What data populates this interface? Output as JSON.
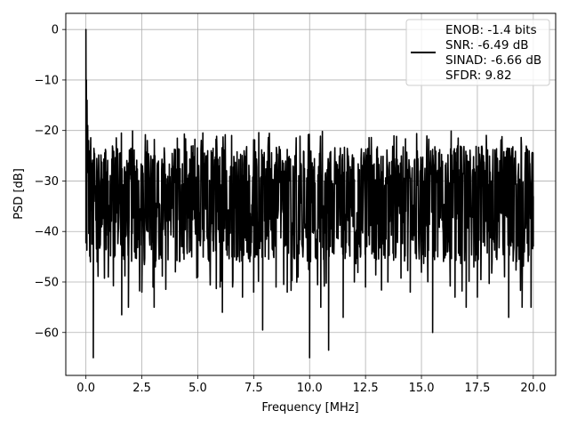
{
  "chart_data": {
    "type": "line",
    "xlabel": "Frequency [MHz]",
    "ylabel": "PSD [dB]",
    "xlim": [
      -0.9,
      21.0
    ],
    "ylim": [
      -68.5,
      3.2
    ],
    "x_ticks": [
      0.0,
      2.5,
      5.0,
      7.5,
      10.0,
      12.5,
      15.0,
      17.5,
      20.0
    ],
    "x_tick_labels": [
      "0.0",
      "2.5",
      "5.0",
      "7.5",
      "10.0",
      "12.5",
      "15.0",
      "17.5",
      "20.0"
    ],
    "y_ticks": [
      0,
      -10,
      -20,
      -30,
      -40,
      -50,
      -60
    ],
    "y_tick_labels": [
      "0",
      "−10",
      "−20",
      "−30",
      "−40",
      "−50",
      "−60"
    ],
    "grid": true,
    "legend_position": "top-right",
    "legend_lines": [
      "ENOB: -1.4 bits",
      "SNR: -6.49 dB",
      "SINAD: -6.66 dB",
      "SFDR: 9.82"
    ],
    "series": [
      {
        "color": "#000000",
        "x_range": [
          0,
          20
        ],
        "description_points": [
          [
            0.0,
            0.0
          ],
          [
            0.02,
            -10
          ],
          [
            0.05,
            -14
          ],
          [
            0.08,
            -19
          ],
          [
            0.12,
            -22
          ],
          [
            0.2,
            -26
          ],
          [
            0.3,
            -34
          ],
          [
            0.33,
            -65
          ],
          [
            0.5,
            -46
          ],
          [
            1.0,
            -49
          ],
          [
            1.6,
            -56.5
          ],
          [
            1.9,
            -55
          ],
          [
            2.5,
            -52
          ],
          [
            3.0,
            -51
          ],
          [
            3.05,
            -55
          ],
          [
            3.1,
            -47
          ],
          [
            4.0,
            -48
          ],
          [
            5.0,
            -49
          ],
          [
            6.0,
            -51
          ],
          [
            6.1,
            -56
          ],
          [
            7.0,
            -53
          ],
          [
            7.5,
            -52
          ],
          [
            7.9,
            -59.5
          ],
          [
            8.5,
            -51
          ],
          [
            9.0,
            -52
          ],
          [
            10.0,
            -65
          ],
          [
            10.5,
            -55
          ],
          [
            10.85,
            -63.5
          ],
          [
            11.5,
            -57
          ],
          [
            12.0,
            -50
          ],
          [
            12.5,
            -51
          ],
          [
            13.5,
            -50
          ],
          [
            14.5,
            -52
          ],
          [
            15.5,
            -60
          ],
          [
            16.5,
            -53
          ],
          [
            17.0,
            -55
          ],
          [
            17.5,
            -53
          ],
          [
            18.9,
            -57
          ],
          [
            19.5,
            -55
          ],
          [
            19.9,
            -55
          ],
          [
            20.0,
            -33
          ]
        ],
        "noise_band": {
          "upper_mean": -27,
          "lower_mean": -40,
          "peak_high": -22,
          "base": -33
        }
      }
    ]
  }
}
